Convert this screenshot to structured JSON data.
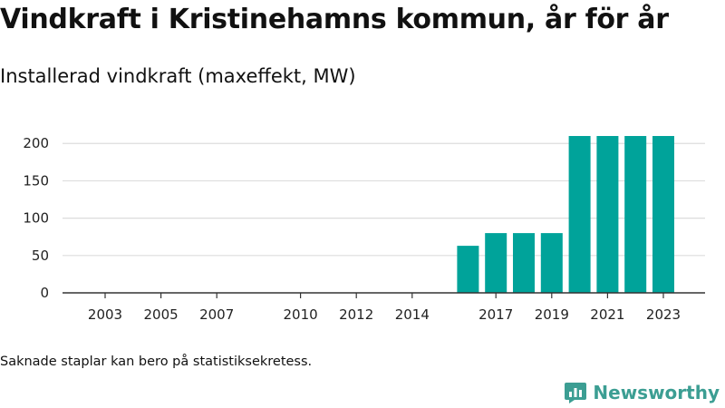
{
  "header": {
    "title": "Vindkraft i Kristinehamns kommun, år för år",
    "subtitle": "Installerad vindkraft (maxeffekt, MW)"
  },
  "footnote": "Saknade staplar kan bero på statistiksekretess.",
  "brand": {
    "name": "Newsworthy",
    "icon": "newsworthy-logo-icon",
    "color": "#3c9e93"
  },
  "colors": {
    "bar": "#00a39a",
    "grid": "#dddddd",
    "axis": "#333333"
  },
  "chart_data": {
    "type": "bar",
    "title": "Vindkraft i Kristinehamns kommun, år för år",
    "subtitle": "Installerad vindkraft (maxeffekt, MW)",
    "xlabel": "",
    "ylabel": "",
    "x": [
      2016,
      2017,
      2018,
      2019,
      2020,
      2021,
      2022,
      2023
    ],
    "values": [
      63,
      80,
      80,
      80,
      210,
      210,
      210,
      210
    ],
    "x_tick_labels": [
      "2003",
      "2005",
      "2007",
      "2010",
      "2012",
      "2014",
      "2017",
      "2019",
      "2021",
      "2023"
    ],
    "x_range": [
      2001,
      2024
    ],
    "ylim": [
      0,
      210
    ],
    "yticks": [
      0,
      50,
      100,
      150,
      200
    ],
    "grid": true,
    "legend": "none"
  }
}
